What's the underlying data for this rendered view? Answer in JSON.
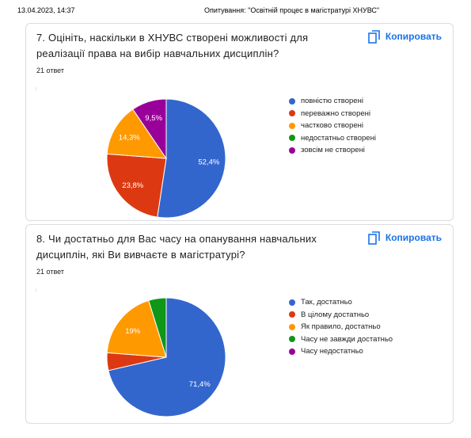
{
  "header": {
    "date": "13.04.2023, 14:37",
    "title": "Опитування: \"Освітній процес в магістратурі ХНУВС\""
  },
  "copy_label": "Копировать",
  "questions": [
    {
      "title": "7. Оцініть, наскільки в ХНУВС створені можливості для реалізації права на вибір навчальних дисциплін?",
      "responses": "21 ответ"
    },
    {
      "title": "8.   Чи  достатньо  для Вас  часу на опанування навчальних дисциплін, які Ви вивчаєте в магістратурі?",
      "responses": "21 ответ"
    }
  ],
  "chart_data": [
    {
      "type": "pie",
      "series": [
        {
          "name": "повністю створені",
          "value": 52.4,
          "label": "52,4%",
          "color": "#3366cc"
        },
        {
          "name": "переважно створені",
          "value": 23.8,
          "label": "23,8%",
          "color": "#dc3912"
        },
        {
          "name": "частково створені",
          "value": 14.3,
          "label": "14,3%",
          "color": "#ff9900"
        },
        {
          "name": "недостатньо створені",
          "value": 0,
          "label": "",
          "color": "#109618"
        },
        {
          "name": "зовсім не створені",
          "value": 9.5,
          "label": "9,5%",
          "color": "#990099"
        }
      ],
      "legend_position": "right"
    },
    {
      "type": "pie",
      "series": [
        {
          "name": "Так, достатньо",
          "value": 71.4,
          "label": "71,4%",
          "color": "#3366cc"
        },
        {
          "name": "В цілому достатньо",
          "value": 4.8,
          "label": "",
          "color": "#dc3912"
        },
        {
          "name": "Як правило, достатньо",
          "value": 19,
          "label": "19%",
          "color": "#ff9900"
        },
        {
          "name": "Часу не завжди достатньо",
          "value": 4.8,
          "label": "",
          "color": "#109618"
        },
        {
          "name": "Часу недостатньо",
          "value": 0,
          "label": "",
          "color": "#990099"
        }
      ],
      "legend_position": "right"
    }
  ]
}
